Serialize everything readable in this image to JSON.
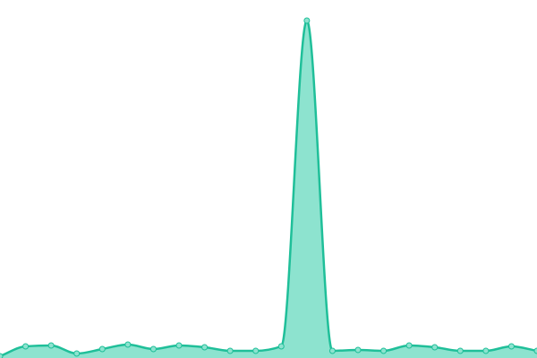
{
  "chart_data": {
    "type": "area",
    "values": [
      2,
      13,
      14,
      5,
      10,
      15,
      10,
      14,
      12,
      8,
      8,
      13,
      377,
      8,
      9,
      8,
      14,
      12,
      8,
      8,
      13,
      8
    ],
    "ylim": [
      0,
      400
    ],
    "color": "#1fbf99",
    "fill": "#8de3cf",
    "markers": true
  }
}
